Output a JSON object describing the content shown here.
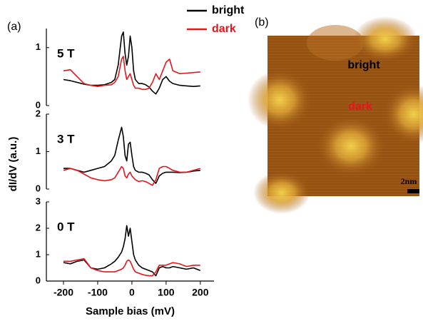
{
  "panels": {
    "a": "(a)",
    "b": "(b)"
  },
  "chart_data": [
    {
      "type": "line",
      "annotation": "5 T",
      "x": [
        -200,
        -180,
        -160,
        -140,
        -120,
        -100,
        -80,
        -60,
        -50,
        -40,
        -30,
        -25,
        -20,
        -15,
        -10,
        -5,
        0,
        5,
        10,
        20,
        30,
        40,
        50,
        60,
        70,
        80,
        90,
        100,
        110,
        120,
        140,
        160,
        180,
        200
      ],
      "series": [
        {
          "name": "bright",
          "color": "#000000",
          "values": [
            0.45,
            0.43,
            0.4,
            0.37,
            0.35,
            0.35,
            0.36,
            0.4,
            0.45,
            0.7,
            1.2,
            1.27,
            0.9,
            0.7,
            0.85,
            1.2,
            1.0,
            0.6,
            0.45,
            0.38,
            0.38,
            0.36,
            0.32,
            0.25,
            0.2,
            0.3,
            0.45,
            0.5,
            0.42,
            0.38,
            0.35,
            0.34,
            0.33,
            0.34
          ]
        },
        {
          "name": "dark",
          "color": "#e8141b",
          "values": [
            0.6,
            0.62,
            0.5,
            0.38,
            0.35,
            0.33,
            0.35,
            0.36,
            0.4,
            0.5,
            0.8,
            0.85,
            0.6,
            0.45,
            0.5,
            0.55,
            0.45,
            0.35,
            0.3,
            0.3,
            0.28,
            0.28,
            0.3,
            0.4,
            0.55,
            0.45,
            0.6,
            0.75,
            0.8,
            0.6,
            0.55,
            0.56,
            0.57,
            0.58
          ]
        }
      ],
      "xlim": [
        -250,
        240
      ],
      "ylim": [
        0,
        1.33
      ],
      "yticks": [
        0,
        1
      ]
    },
    {
      "type": "line",
      "annotation": "3 T",
      "ylabel": "dI/dV (a.u.)",
      "x": [
        -200,
        -180,
        -160,
        -140,
        -120,
        -100,
        -80,
        -60,
        -50,
        -40,
        -30,
        -25,
        -20,
        -15,
        -10,
        -5,
        0,
        5,
        10,
        20,
        30,
        40,
        50,
        60,
        70,
        80,
        90,
        100,
        110,
        120,
        140,
        160,
        180,
        200
      ],
      "series": [
        {
          "name": "bright",
          "color": "#000000",
          "values": [
            0.55,
            0.55,
            0.5,
            0.45,
            0.5,
            0.55,
            0.6,
            0.75,
            0.9,
            1.3,
            1.65,
            1.4,
            0.9,
            0.75,
            1.2,
            1.25,
            0.9,
            0.6,
            0.5,
            0.45,
            0.45,
            0.42,
            0.38,
            0.25,
            0.15,
            0.35,
            0.42,
            0.45,
            0.45,
            0.45,
            0.44,
            0.45,
            0.48,
            0.5
          ]
        },
        {
          "name": "dark",
          "color": "#e8141b",
          "values": [
            0.5,
            0.55,
            0.5,
            0.4,
            0.3,
            0.25,
            0.22,
            0.25,
            0.3,
            0.45,
            0.6,
            0.55,
            0.35,
            0.3,
            0.4,
            0.45,
            0.35,
            0.3,
            0.25,
            0.2,
            0.22,
            0.2,
            0.15,
            0.1,
            0.25,
            0.55,
            0.6,
            0.6,
            0.55,
            0.5,
            0.45,
            0.45,
            0.5,
            0.55
          ]
        }
      ],
      "xlim": [
        -250,
        240
      ],
      "ylim": [
        0,
        2
      ],
      "yticks": [
        0,
        1,
        2
      ]
    },
    {
      "type": "line",
      "annotation": "0 T",
      "xlabel": "Sample bias (mV)",
      "x": [
        -200,
        -180,
        -160,
        -140,
        -120,
        -100,
        -80,
        -60,
        -50,
        -40,
        -30,
        -25,
        -20,
        -15,
        -10,
        -5,
        0,
        5,
        10,
        20,
        30,
        40,
        50,
        60,
        70,
        80,
        90,
        100,
        110,
        120,
        140,
        160,
        180,
        200
      ],
      "series": [
        {
          "name": "bright",
          "color": "#000000",
          "values": [
            0.7,
            0.65,
            0.75,
            0.8,
            0.5,
            0.45,
            0.5,
            0.65,
            0.75,
            0.9,
            1.1,
            1.3,
            1.6,
            2.1,
            1.7,
            2.0,
            1.5,
            1.0,
            0.8,
            0.6,
            0.5,
            0.45,
            0.4,
            0.35,
            0.2,
            0.5,
            0.55,
            0.5,
            0.5,
            0.55,
            0.5,
            0.45,
            0.5,
            0.4
          ]
        },
        {
          "name": "dark",
          "color": "#e8141b",
          "values": [
            0.75,
            0.75,
            0.8,
            0.85,
            0.5,
            0.4,
            0.35,
            0.35,
            0.35,
            0.4,
            0.45,
            0.5,
            0.6,
            0.75,
            0.8,
            0.75,
            0.6,
            0.45,
            0.35,
            0.3,
            0.25,
            0.22,
            0.2,
            0.2,
            0.35,
            0.6,
            0.6,
            0.6,
            0.65,
            0.7,
            0.65,
            0.55,
            0.6,
            0.6
          ]
        }
      ],
      "xlim": [
        -250,
        240
      ],
      "ylim": [
        0,
        3
      ],
      "yticks": [
        0,
        1,
        2,
        3
      ],
      "xticks": [
        -200,
        -100,
        0,
        100,
        200
      ]
    }
  ],
  "image": {
    "bright": "bright",
    "dark": "dark",
    "scale": "2nm"
  }
}
